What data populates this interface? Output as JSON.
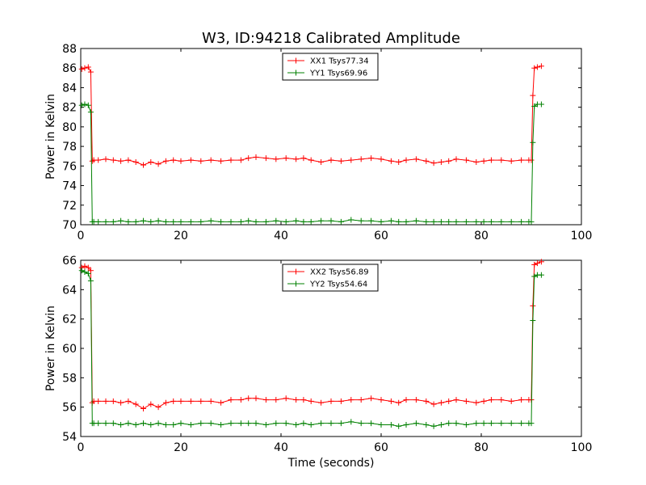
{
  "figure": {
    "title": "W3, ID:94218 Calibrated Amplitude",
    "xlabel": "Time (seconds)"
  },
  "chart_data": [
    {
      "type": "line",
      "title": "W3, ID:94218 Calibrated Amplitude",
      "xlabel": "",
      "ylabel": "Power in Kelvin",
      "xlim": [
        0,
        100
      ],
      "ylim": [
        70,
        88
      ],
      "xticks": [
        0,
        20,
        40,
        60,
        80,
        100
      ],
      "yticks": [
        70,
        72,
        74,
        76,
        78,
        80,
        82,
        84,
        86,
        88
      ],
      "xtick_labels": [
        "0",
        "20",
        "40",
        "60",
        "80",
        "100"
      ],
      "ytick_labels": [
        "70",
        "72",
        "74",
        "76",
        "78",
        "80",
        "82",
        "84",
        "86",
        "88"
      ],
      "legend_position": "top-center",
      "grid": false,
      "marker": "+",
      "series": [
        {
          "name": "XX1 Tsys77.34",
          "color": "#ff0000",
          "x": [
            0.2,
            0.8,
            1.5,
            2.0,
            2.3,
            2.6,
            3.5,
            5,
            6.5,
            8,
            9.5,
            11,
            12.5,
            14,
            15.5,
            17,
            18.5,
            20,
            22,
            24,
            26,
            28,
            30,
            32,
            33.5,
            35,
            37,
            39,
            41,
            43,
            44.5,
            46,
            48,
            50,
            52,
            54,
            56,
            58,
            60,
            62,
            63.5,
            65,
            67,
            69,
            70.5,
            72,
            73.5,
            75,
            77,
            79,
            80.5,
            82,
            84,
            86,
            88,
            89.5,
            90.0,
            90.3,
            90.6,
            91.2,
            92.0
          ],
          "y": [
            85.9,
            86.0,
            86.1,
            85.6,
            76.5,
            76.6,
            76.6,
            76.7,
            76.6,
            76.5,
            76.6,
            76.4,
            76.1,
            76.4,
            76.2,
            76.5,
            76.6,
            76.5,
            76.6,
            76.5,
            76.6,
            76.5,
            76.6,
            76.6,
            76.8,
            76.9,
            76.8,
            76.7,
            76.8,
            76.7,
            76.8,
            76.6,
            76.4,
            76.6,
            76.5,
            76.6,
            76.7,
            76.8,
            76.7,
            76.5,
            76.4,
            76.6,
            76.7,
            76.5,
            76.3,
            76.4,
            76.5,
            76.7,
            76.6,
            76.4,
            76.5,
            76.6,
            76.6,
            76.5,
            76.6,
            76.6,
            76.6,
            83.2,
            86.0,
            86.1,
            86.2
          ]
        },
        {
          "name": "YY1 Tsys69.96",
          "color": "#008000",
          "x": [
            0.2,
            0.8,
            1.5,
            2.0,
            2.3,
            2.6,
            3.5,
            5,
            6.5,
            8,
            9.5,
            11,
            12.5,
            14,
            15.5,
            17,
            18.5,
            20,
            22,
            24,
            26,
            28,
            30,
            32,
            33.5,
            35,
            37,
            39,
            41,
            43,
            44.5,
            46,
            48,
            50,
            52,
            54,
            56,
            58,
            60,
            62,
            63.5,
            65,
            67,
            69,
            70.5,
            72,
            73.5,
            75,
            77,
            79,
            80.5,
            82,
            84,
            86,
            88,
            89.5,
            90.0,
            90.3,
            90.6,
            91.2,
            92.0
          ],
          "y": [
            82.2,
            82.3,
            82.2,
            81.5,
            70.3,
            70.3,
            70.3,
            70.3,
            70.3,
            70.4,
            70.3,
            70.3,
            70.4,
            70.3,
            70.4,
            70.3,
            70.3,
            70.3,
            70.3,
            70.3,
            70.4,
            70.3,
            70.3,
            70.3,
            70.4,
            70.3,
            70.3,
            70.4,
            70.3,
            70.4,
            70.3,
            70.3,
            70.4,
            70.4,
            70.3,
            70.5,
            70.4,
            70.4,
            70.3,
            70.4,
            70.3,
            70.3,
            70.4,
            70.3,
            70.3,
            70.3,
            70.3,
            70.3,
            70.3,
            70.3,
            70.3,
            70.3,
            70.3,
            70.3,
            70.3,
            70.3,
            70.3,
            78.4,
            82.1,
            82.3,
            82.3
          ]
        }
      ]
    },
    {
      "type": "line",
      "title": "",
      "xlabel": "Time (seconds)",
      "ylabel": "Power in Kelvin",
      "xlim": [
        0,
        100
      ],
      "ylim": [
        54,
        66
      ],
      "xticks": [
        0,
        20,
        40,
        60,
        80,
        100
      ],
      "yticks": [
        54,
        56,
        58,
        60,
        62,
        64,
        66
      ],
      "xtick_labels": [
        "0",
        "20",
        "40",
        "60",
        "80",
        "100"
      ],
      "ytick_labels": [
        "54",
        "56",
        "58",
        "60",
        "62",
        "64",
        "66"
      ],
      "legend_position": "top-center",
      "grid": false,
      "marker": "+",
      "series": [
        {
          "name": "XX2 Tsys56.89",
          "color": "#ff0000",
          "x": [
            0.2,
            0.8,
            1.5,
            2.0,
            2.3,
            2.6,
            3.5,
            5,
            6.5,
            8,
            9.5,
            11,
            12.5,
            14,
            15.5,
            17,
            18.5,
            20,
            22,
            24,
            26,
            28,
            30,
            32,
            33.5,
            35,
            37,
            39,
            41,
            43,
            44.5,
            46,
            48,
            50,
            52,
            54,
            56,
            58,
            60,
            62,
            63.5,
            65,
            67,
            69,
            70.5,
            72,
            73.5,
            75,
            77,
            79,
            80.5,
            82,
            84,
            86,
            88,
            89.5,
            90.0,
            90.3,
            90.6,
            91.2,
            92.0
          ],
          "y": [
            65.5,
            65.6,
            65.5,
            65.3,
            56.3,
            56.4,
            56.4,
            56.4,
            56.4,
            56.3,
            56.4,
            56.2,
            55.9,
            56.2,
            56.0,
            56.3,
            56.4,
            56.4,
            56.4,
            56.4,
            56.4,
            56.3,
            56.5,
            56.5,
            56.6,
            56.6,
            56.5,
            56.5,
            56.6,
            56.5,
            56.5,
            56.4,
            56.3,
            56.4,
            56.4,
            56.5,
            56.5,
            56.6,
            56.5,
            56.4,
            56.3,
            56.5,
            56.5,
            56.4,
            56.2,
            56.3,
            56.4,
            56.5,
            56.4,
            56.3,
            56.4,
            56.5,
            56.5,
            56.4,
            56.5,
            56.5,
            56.5,
            62.9,
            65.7,
            65.8,
            65.9
          ]
        },
        {
          "name": "YY2 Tsys54.64",
          "color": "#008000",
          "x": [
            0.2,
            0.8,
            1.5,
            2.0,
            2.3,
            2.6,
            3.5,
            5,
            6.5,
            8,
            9.5,
            11,
            12.5,
            14,
            15.5,
            17,
            18.5,
            20,
            22,
            24,
            26,
            28,
            30,
            32,
            33.5,
            35,
            37,
            39,
            41,
            43,
            44.5,
            46,
            48,
            50,
            52,
            54,
            56,
            58,
            60,
            62,
            63.5,
            65,
            67,
            69,
            70.5,
            72,
            73.5,
            75,
            77,
            79,
            80.5,
            82,
            84,
            86,
            88,
            89.5,
            90.0,
            90.3,
            90.6,
            91.2,
            92.0
          ],
          "y": [
            65.3,
            65.2,
            65.1,
            64.6,
            54.9,
            54.9,
            54.9,
            54.9,
            54.9,
            54.8,
            54.9,
            54.8,
            54.9,
            54.8,
            54.9,
            54.8,
            54.8,
            54.9,
            54.8,
            54.9,
            54.9,
            54.8,
            54.9,
            54.9,
            54.9,
            54.9,
            54.8,
            54.9,
            54.9,
            54.8,
            54.9,
            54.8,
            54.9,
            54.9,
            54.9,
            55.0,
            54.9,
            54.9,
            54.8,
            54.8,
            54.7,
            54.8,
            54.9,
            54.8,
            54.7,
            54.8,
            54.9,
            54.9,
            54.8,
            54.9,
            54.9,
            54.9,
            54.9,
            54.9,
            54.9,
            54.9,
            54.9,
            61.9,
            64.9,
            65.0,
            65.0
          ]
        }
      ]
    }
  ]
}
